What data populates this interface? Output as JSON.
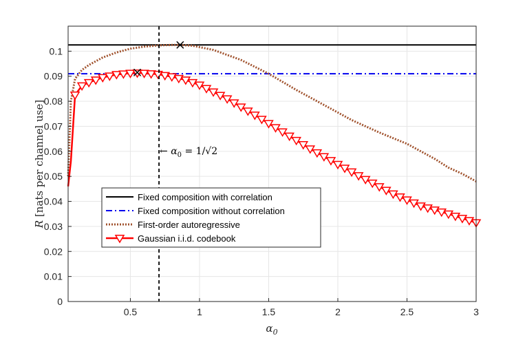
{
  "chart_data": {
    "type": "line",
    "title": "",
    "xlabel": "α0",
    "ylabel": "R [nats per channel use]",
    "xlim": [
      0.05,
      3
    ],
    "ylim": [
      0,
      0.11
    ],
    "grid": true,
    "x_ticks": [
      0.5,
      1,
      1.5,
      2,
      2.5,
      3
    ],
    "x_tick_labels": [
      "0.5",
      "1",
      "1.5",
      "2",
      "2.5",
      "3"
    ],
    "y_ticks": [
      0,
      0.01,
      0.02,
      0.03,
      0.04,
      0.05,
      0.06,
      0.07,
      0.08,
      0.09,
      0.1
    ],
    "y_tick_labels": [
      "0",
      "0.01",
      "0.02",
      "0.03",
      "0.04",
      "0.05",
      "0.06",
      "0.07",
      "0.08",
      "0.09",
      "0.1"
    ],
    "legend_position": "lower-left",
    "colors": {
      "fixed_corr": "#000000",
      "fixed_nocorr": "#0000ee",
      "autoregressive": "#a0522d",
      "gaussian": "#ff0000"
    },
    "series": [
      {
        "name": "Fixed composition with correlation",
        "style": "solid",
        "x": [
          0.05,
          3
        ],
        "y": [
          0.1025,
          0.1025
        ]
      },
      {
        "name": "Fixed composition without correlation",
        "style": "dashdot",
        "x": [
          0.05,
          3
        ],
        "y": [
          0.091,
          0.091
        ]
      },
      {
        "name": "First-order autoregressive",
        "style": "dotted",
        "x": [
          0.05,
          0.07,
          0.1,
          0.15,
          0.2,
          0.3,
          0.4,
          0.5,
          0.6,
          0.7,
          0.8,
          0.86,
          0.95,
          1.1,
          1.3,
          1.5,
          1.7,
          1.9,
          2.1,
          2.3,
          2.5,
          2.6,
          2.7,
          2.8,
          2.9,
          3.0
        ],
        "y": [
          0.05,
          0.08,
          0.089,
          0.0925,
          0.0945,
          0.0975,
          0.0995,
          0.101,
          0.1018,
          0.1023,
          0.1025,
          0.1025,
          0.1022,
          0.1005,
          0.0965,
          0.091,
          0.0845,
          0.0785,
          0.0725,
          0.0675,
          0.063,
          0.06,
          0.057,
          0.0535,
          0.051,
          0.048
        ]
      },
      {
        "name": "Gaussian i.i.d. codebook",
        "style": "solid-triangle-markers",
        "x": [
          0.05,
          0.07,
          0.1,
          0.15,
          0.2,
          0.3,
          0.4,
          0.5,
          0.55,
          0.6,
          0.7,
          0.8,
          0.9,
          1.0,
          1.2,
          1.4,
          1.6,
          1.8,
          2.0,
          2.2,
          2.4,
          2.6,
          2.8,
          3.0
        ],
        "y": [
          0.046,
          0.056,
          0.0825,
          0.0862,
          0.0875,
          0.0895,
          0.0907,
          0.0912,
          0.0913,
          0.0912,
          0.0908,
          0.0898,
          0.0885,
          0.0865,
          0.081,
          0.0745,
          0.0678,
          0.061,
          0.0548,
          0.0488,
          0.043,
          0.0382,
          0.035,
          0.0315
        ]
      }
    ],
    "maxima_markers": [
      {
        "label": "max-autoregressive",
        "x": 0.86,
        "y": 0.1025
      },
      {
        "label": "max-gaussian",
        "x": 0.55,
        "y": 0.0915
      }
    ],
    "vline": {
      "x": 0.7071,
      "style": "dashed"
    },
    "annotation": {
      "text": "← α0 = 1/√2",
      "x": 0.72,
      "y": 0.06
    }
  }
}
